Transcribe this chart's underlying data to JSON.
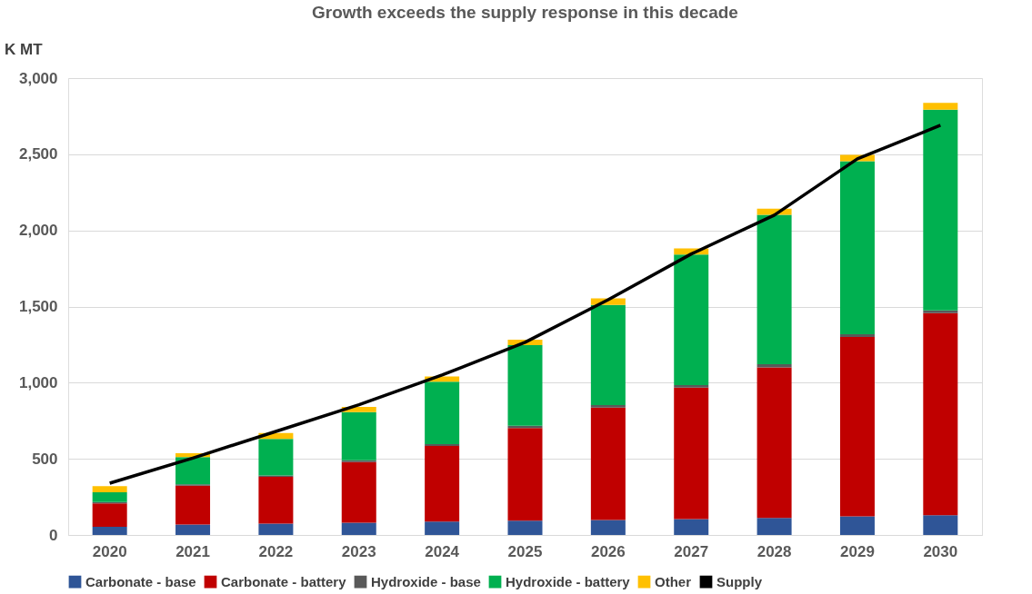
{
  "chart_data": {
    "type": "bar",
    "title": "Growth exceeds the supply response in this decade",
    "ylabel": "K MT",
    "categories": [
      "2020",
      "2021",
      "2022",
      "2023",
      "2024",
      "2025",
      "2026",
      "2027",
      "2028",
      "2029",
      "2030"
    ],
    "stacked": true,
    "series": [
      {
        "name": "Carbonate - base",
        "color": "#2f5597",
        "values": [
          54,
          69,
          75,
          81,
          88,
          94,
          98,
          105,
          112,
          122,
          129
        ]
      },
      {
        "name": "Carbonate - battery",
        "color": "#c00000",
        "values": [
          154,
          254,
          306,
          397,
          497,
          608,
          738,
          862,
          989,
          1178,
          1328
        ]
      },
      {
        "name": "Hydroxide - base",
        "color": "#595959",
        "values": [
          8,
          10,
          10,
          12,
          12,
          15,
          17,
          17,
          20,
          18,
          18
        ]
      },
      {
        "name": "Hydroxide - battery",
        "color": "#00b050",
        "values": [
          64,
          179,
          239,
          316,
          410,
          529,
          657,
          858,
          982,
          1137,
          1317
        ]
      },
      {
        "name": "Other",
        "color": "#ffc000",
        "values": [
          40,
          25,
          39,
          35,
          34,
          37,
          43,
          39,
          39,
          41,
          46
        ]
      },
      {
        "name": "Supply",
        "type": "line",
        "color": "#000000",
        "values": [
          340,
          505,
          680,
          855,
          1050,
          1265,
          1545,
          1845,
          2100,
          2470,
          2690
        ]
      }
    ],
    "ylim": [
      0,
      3000
    ],
    "yticks": [
      0,
      500,
      {
        "value": 1000,
        "label": "1,000"
      },
      {
        "value": 1500,
        "label": "1,500"
      },
      {
        "value": 2000,
        "label": "2,000"
      },
      {
        "value": 2500,
        "label": "2,500"
      },
      {
        "value": 3000,
        "label": "3,000"
      }
    ],
    "grid": "y",
    "legend": "bottom"
  }
}
